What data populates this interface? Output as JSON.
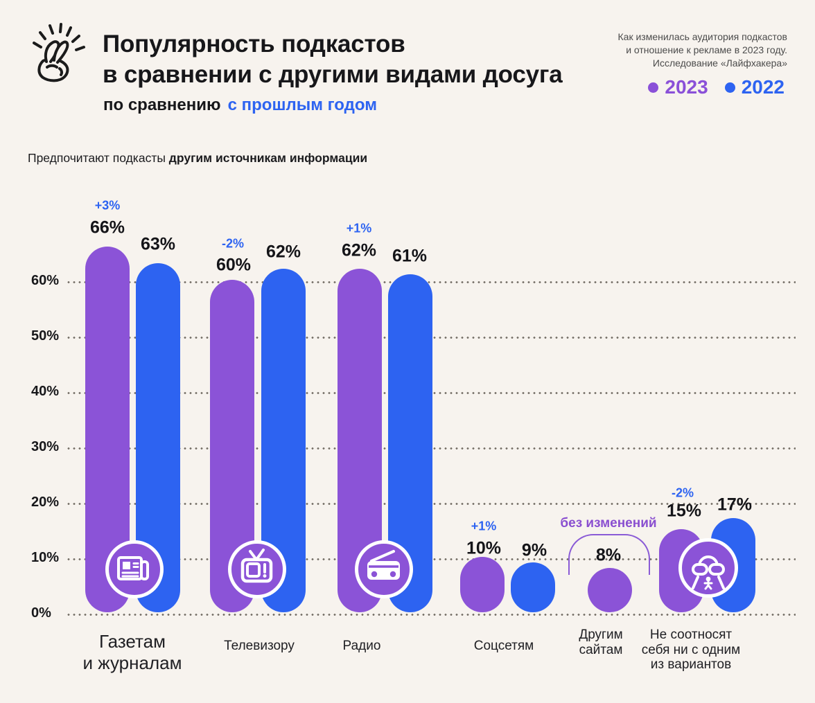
{
  "background": "#f7f3ee",
  "colors": {
    "purple_2023": "#8b53d7",
    "blue_2022": "#2d63f1",
    "text": "#17171a",
    "muted_text": "#4b4b4b",
    "grid_dots": "#756f67"
  },
  "header": {
    "logo": "crossed-fingers-icon",
    "title": "Популярность подкастов\nв сравнении с другими видами досуга",
    "subtitle_prefix": "по сравнению",
    "subtitle_highlight": "с прошлым годом",
    "source": "Как изменилась аудитория подкастов\nи отношение к рекламе в 2023 году.\nИсследование «Лайфхакера»",
    "legend": {
      "items": [
        {
          "year": "2023",
          "color": "#8a50d8"
        },
        {
          "year": "2022",
          "color": "#2d63f1"
        }
      ]
    }
  },
  "section_title": {
    "regular": "Предпочитают подкасты",
    "bold": "другим источникам информации"
  },
  "axis": {
    "ticks_top_down": [
      "60%",
      "50%",
      "40%",
      "30%",
      "20%",
      "10%",
      "0%"
    ]
  },
  "chart_data": {
    "type": "bar",
    "title": "Предпочитают подкасты другим источникам информации",
    "subtitle": "по сравнению с прошлым годом",
    "unit": "%",
    "ylim": [
      0,
      60
    ],
    "ytick_step": 10,
    "grid": "dotted-horizontal",
    "legend_position": "top-right",
    "categories": [
      "Газетам и журналам",
      "Телевизору",
      "Радио",
      "Соцсетям",
      "Другим сайтам",
      "Не соотносят себя ни с одним из вариантов"
    ],
    "series": [
      {
        "name": "2023",
        "color": "#8b53d7",
        "values": [
          66,
          60,
          62,
          10,
          8,
          15
        ]
      },
      {
        "name": "2022",
        "color": "#2d63f1",
        "values": [
          63,
          62,
          61,
          9,
          null,
          17
        ]
      }
    ],
    "changes_2023_vs_2022": [
      "+3%",
      "-2%",
      "+1%",
      "+1%",
      "без изменений",
      "-2%"
    ],
    "category_icons": [
      "newspaper-icon",
      "tv-icon",
      "radio-icon",
      null,
      null,
      "ufo-icon"
    ]
  },
  "groups": [
    {
      "category": "Газетам\nи журналам",
      "change": "+3%",
      "v2023": "66%",
      "v2022": "63%"
    },
    {
      "category": "Телевизору",
      "change": "-2%",
      "v2023": "60%",
      "v2022": "62%"
    },
    {
      "category": "Радио",
      "change": "+1%",
      "v2023": "62%",
      "v2022": "61%"
    },
    {
      "category": "Соцсетям",
      "change": "+1%",
      "v2023": "10%",
      "v2022": "9%"
    },
    {
      "category": "Другим\nсайтам",
      "change": "без изменений",
      "v2023": "8%"
    },
    {
      "category": "Не соотносят\nсебя ни с одним\nиз вариантов",
      "change": "-2%",
      "v2023": "15%",
      "v2022": "17%"
    }
  ]
}
